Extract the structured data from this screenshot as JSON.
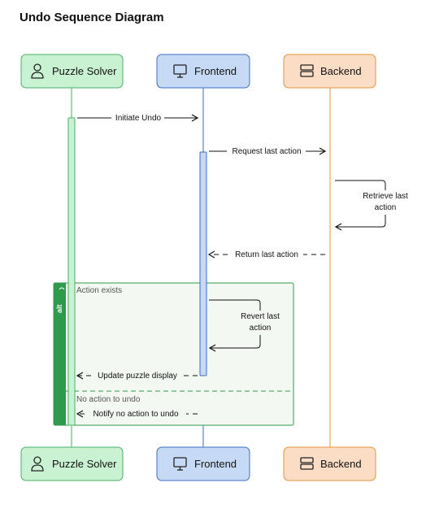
{
  "title": "Undo Sequence Diagram",
  "colors": {
    "solver_fill": "#c9f2d2",
    "solver_stroke": "#4caf6a",
    "frontend_fill": "#c7daf5",
    "frontend_stroke": "#3b6fc4",
    "backend_fill": "#fbdcc5",
    "backend_stroke": "#e0963f",
    "alt_green": "#2e9a4c"
  },
  "participants": [
    {
      "id": "solver",
      "label": "Puzzle Solver",
      "icon": "person-icon"
    },
    {
      "id": "frontend",
      "label": "Frontend",
      "icon": "monitor-icon"
    },
    {
      "id": "backend",
      "label": "Backend",
      "icon": "server-icon"
    }
  ],
  "messages": {
    "m1": "Initiate Undo",
    "m2": "Request last action",
    "m3_line1": "Retrieve last",
    "m3_line2": "action",
    "m4": "Return last action",
    "m5_line1": "Revert last",
    "m5_line2": "action",
    "m6": "Update puzzle display",
    "m7": "Notify no action to undo"
  },
  "alt": {
    "label": "alt",
    "branch1": "Action exists",
    "branch2": "No action to undo"
  }
}
